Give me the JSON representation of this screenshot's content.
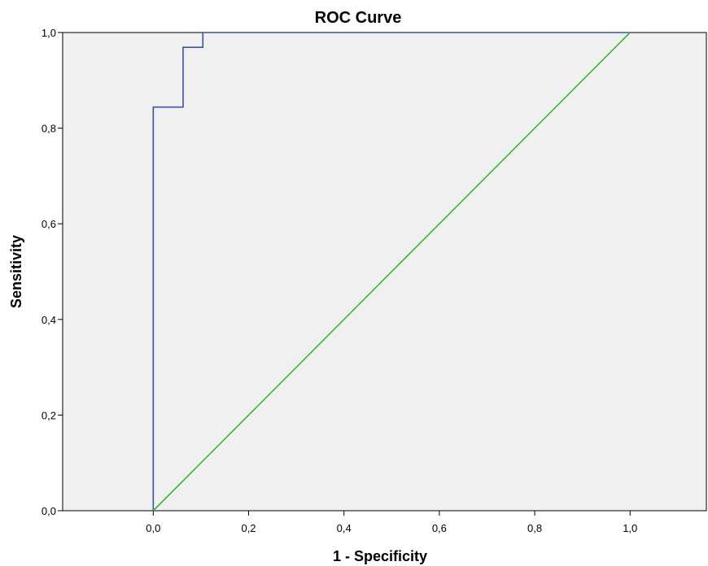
{
  "chart_data": {
    "type": "line",
    "title": "ROC Curve",
    "xlabel": "1 - Specificity",
    "ylabel": "Sensitivity",
    "xlim": [
      -0.19,
      1.16
    ],
    "ylim": [
      0,
      1
    ],
    "x_ticks": [
      {
        "value": 0.0,
        "label": "0,0"
      },
      {
        "value": 0.2,
        "label": "0,2"
      },
      {
        "value": 0.4,
        "label": "0,4"
      },
      {
        "value": 0.6,
        "label": "0,6"
      },
      {
        "value": 0.8,
        "label": "0,8"
      },
      {
        "value": 1.0,
        "label": "1,0"
      }
    ],
    "y_ticks": [
      {
        "value": 0.0,
        "label": "0,0"
      },
      {
        "value": 0.2,
        "label": "0,2"
      },
      {
        "value": 0.4,
        "label": "0,4"
      },
      {
        "value": 0.6,
        "label": "0,6"
      },
      {
        "value": 0.8,
        "label": "0,8"
      },
      {
        "value": 1.0,
        "label": "1,0"
      }
    ],
    "grid": false,
    "legend": "none",
    "plot_background": "#f0f0f0",
    "series": [
      {
        "color": "#3b55a6",
        "step": true,
        "x": [
          0.0,
          0.0,
          0.0625,
          0.0625,
          0.104,
          0.104,
          1.0
        ],
        "y": [
          0.0,
          0.844,
          0.844,
          0.969,
          0.969,
          1.0,
          1.0
        ]
      },
      {
        "color": "#33bb33",
        "step": false,
        "x": [
          0.0,
          1.0
        ],
        "y": [
          0.0,
          1.0
        ]
      }
    ]
  }
}
